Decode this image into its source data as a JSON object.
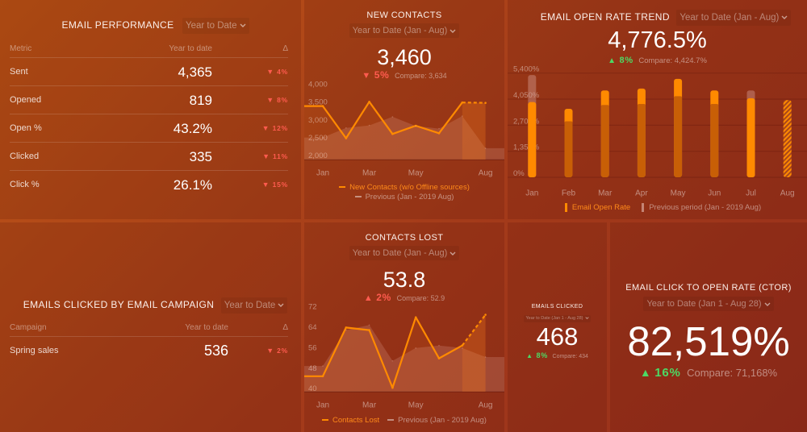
{
  "dashboard": {
    "email_performance": {
      "title": "EMAIL PERFORMANCE",
      "period": "Year to Date",
      "columns": {
        "metric": "Metric",
        "value": "Year to date",
        "delta": "Δ"
      },
      "rows": [
        {
          "metric": "Sent",
          "value": "4,365",
          "delta": "4%",
          "direction": "down"
        },
        {
          "metric": "Opened",
          "value": "819",
          "delta": "8%",
          "direction": "down"
        },
        {
          "metric": "Open %",
          "value": "43.2%",
          "delta": "12%",
          "direction": "down"
        },
        {
          "metric": "Clicked",
          "value": "335",
          "delta": "11%",
          "direction": "down"
        },
        {
          "metric": "Click %",
          "value": "26.1%",
          "delta": "15%",
          "direction": "down"
        }
      ]
    },
    "new_contacts": {
      "title": "NEW CONTACTS",
      "period": "Year to Date (Jan - Aug)",
      "value": "3,460",
      "change": "5%",
      "direction": "down",
      "compare": "Compare: 3,634"
    },
    "email_open_rate_trend": {
      "title": "EMAIL OPEN RATE TREND",
      "period": "Year to Date (Jan - Aug)",
      "value": "4,776.5%",
      "change": "8%",
      "direction": "up",
      "compare": "Compare: 4,424.7%"
    },
    "emails_clicked_by_campaign": {
      "title": "EMAILS CLICKED BY EMAIL CAMPAIGN",
      "period": "Year to Date",
      "columns": {
        "campaign": "Campaign",
        "value": "Year to date",
        "delta": "Δ"
      },
      "rows": [
        {
          "campaign": "Spring sales",
          "value": "536",
          "delta": "2%",
          "direction": "down"
        }
      ]
    },
    "contacts_lost": {
      "title": "CONTACTS LOST",
      "period": "Year to Date (Jan - Aug)",
      "value": "53.8",
      "change": "2%",
      "direction": "up",
      "compare": "Compare: 52.9"
    },
    "emails_clicked": {
      "title": "EMAILS CLICKED",
      "period": "Year to Date (Jan 1 - Aug 28)",
      "value": "468",
      "change": "8%",
      "direction": "up",
      "compare": "Compare: 434"
    },
    "ctor": {
      "title": "EMAIL CLICK TO OPEN RATE (CTOR)",
      "period": "Year to Date (Jan 1 - Aug 28)",
      "value": "82,519%",
      "change": "16%",
      "direction": "up",
      "compare": "Compare: 71,168%"
    }
  },
  "icons": {
    "arrow_down": "▼",
    "arrow_up": "▲",
    "dropdown": "chevron-down-icon"
  },
  "colors": {
    "accent_orange": "#ff8a00",
    "negative_red": "#ff5b4f",
    "positive_green": "#4cd964",
    "background_top": "#be5516",
    "background_bottom": "#972f1c"
  },
  "chart_data": [
    {
      "id": "new_contacts_chart",
      "type": "line",
      "title": "NEW CONTACTS",
      "categories": [
        "Jan",
        "Feb",
        "Mar",
        "Apr",
        "May",
        "Jun",
        "Jul",
        "Aug"
      ],
      "x_tick_labels": [
        "Jan",
        "Mar",
        "May",
        "Aug"
      ],
      "x_tick_indices": [
        0,
        2,
        4,
        7
      ],
      "y_ticks": [
        2000,
        2500,
        3000,
        3500,
        4000
      ],
      "y_tick_labels": [
        "2,000",
        "2,500",
        "3,000",
        "3,500",
        "4,000"
      ],
      "ylim": [
        2000,
        4000
      ],
      "xlabel": "",
      "ylabel": "",
      "grid": false,
      "legend": "bottom-center",
      "series": [
        {
          "name": "New Contacts (w/o Offline sources)",
          "values": [
            3400,
            2500,
            3520,
            2620,
            2850,
            2640,
            3500,
            3490
          ],
          "projected_from_index": 6,
          "color": "#ff8a00"
        },
        {
          "name": "Previous (Jan - 2019 Aug)",
          "values": [
            2520,
            2790,
            2860,
            3100,
            2840,
            2770,
            3120,
            2220
          ],
          "style": "area",
          "color": "#d9a89a"
        }
      ]
    },
    {
      "id": "email_open_rate_chart",
      "type": "bar",
      "title": "EMAIL OPEN RATE TREND",
      "categories": [
        "Jan",
        "Feb",
        "Mar",
        "Apr",
        "May",
        "Jun",
        "Jul",
        "Aug"
      ],
      "y_ticks": [
        0,
        1350,
        2700,
        4050,
        5400
      ],
      "y_tick_labels": [
        "0%",
        "1,350%",
        "2,700%",
        "4,050%",
        "5,400%"
      ],
      "ylim": [
        0,
        5400
      ],
      "xlabel": "",
      "ylabel": "",
      "grid": true,
      "legend": "bottom-center",
      "series": [
        {
          "name": "Email Open Rate",
          "values": [
            3900,
            3550,
            4500,
            4600,
            5100,
            4500,
            4100,
            4000
          ],
          "projected_index": 7,
          "color": "#ff8a00"
        },
        {
          "name": "Previous period (Jan - 2019 Aug)",
          "values": [
            5300,
            2900,
            3750,
            3800,
            4200,
            3800,
            4500,
            null
          ],
          "color": "#c9958a"
        }
      ]
    },
    {
      "id": "contacts_lost_chart",
      "type": "line",
      "title": "CONTACTS LOST",
      "categories": [
        "Jan",
        "Feb",
        "Mar",
        "Apr",
        "May",
        "Jun",
        "Jul",
        "Aug"
      ],
      "x_tick_labels": [
        "Jan",
        "Mar",
        "May",
        "Aug"
      ],
      "x_tick_indices": [
        0,
        2,
        4,
        7
      ],
      "y_ticks": [
        40,
        48,
        56,
        64,
        72
      ],
      "y_tick_labels": [
        "40",
        "48",
        "56",
        "64",
        "72"
      ],
      "ylim": [
        40,
        72
      ],
      "xlabel": "",
      "ylabel": "",
      "grid": false,
      "legend": "bottom-center",
      "series": [
        {
          "name": "Contacts Lost",
          "values": [
            45,
            64,
            63,
            40.5,
            68,
            52,
            57,
            69
          ],
          "projected_from_index": 6,
          "color": "#ff8a00"
        },
        {
          "name": "Previous (Jan - 2019 Aug)",
          "values": [
            49,
            63,
            65,
            51,
            56,
            57,
            56,
            52.5
          ],
          "style": "area",
          "color": "#d9a89a"
        }
      ]
    }
  ]
}
